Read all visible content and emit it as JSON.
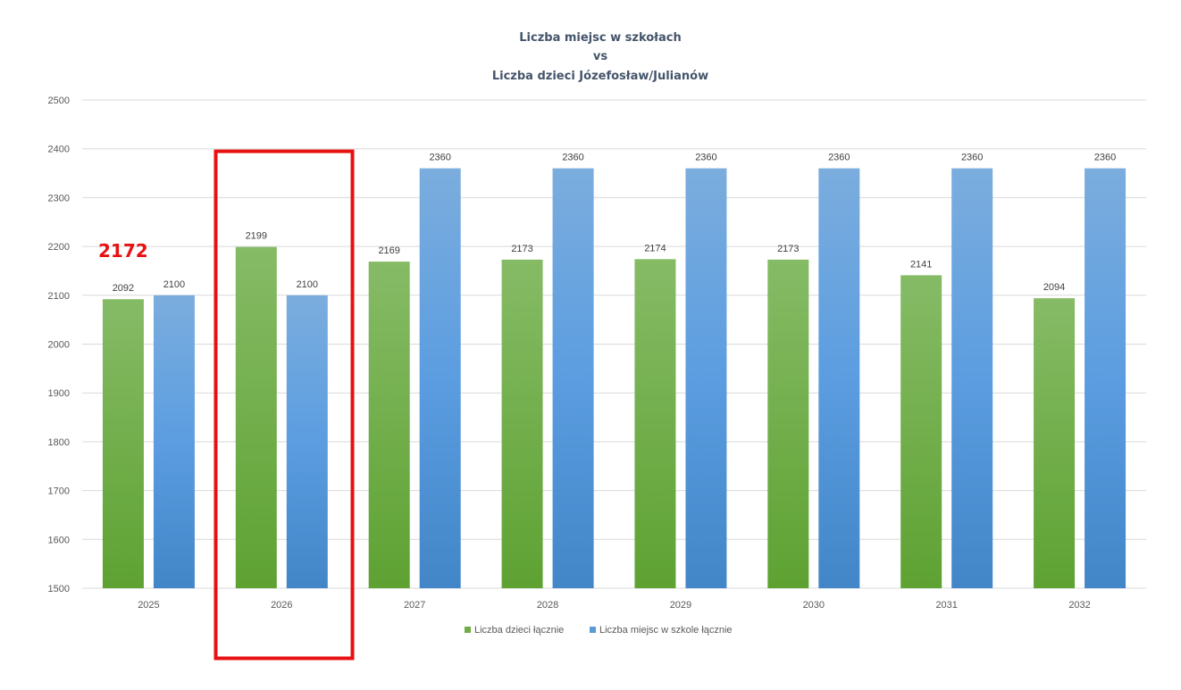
{
  "chart_data": {
    "type": "bar",
    "title": [
      "Liczba miejsc w szkołach",
      "vs",
      "Liczba dzieci Józefosław/Julianów"
    ],
    "categories": [
      "2025",
      "2026",
      "2027",
      "2028",
      "2029",
      "2030",
      "2031",
      "2032"
    ],
    "series": [
      {
        "name": "Liczba dzieci łącznie",
        "color": "#70ad47",
        "values": [
          2092,
          2199,
          2169,
          2173,
          2174,
          2173,
          2141,
          2094
        ]
      },
      {
        "name": "Liczba miejsc w szkole łącznie",
        "color": "#5b9bd5",
        "values": [
          2100,
          2100,
          2360,
          2360,
          2360,
          2360,
          2360,
          2360
        ]
      }
    ],
    "ylim": [
      1500,
      2500
    ],
    "yticks": [
      1500,
      1600,
      1700,
      1800,
      1900,
      2000,
      2100,
      2200,
      2300,
      2400,
      2500
    ],
    "grid": true,
    "legend": "bottom",
    "data_labels": true,
    "annotations": {
      "text": "2172",
      "text_color": "#e81010",
      "highlight_category": "2026",
      "highlight_color": "#e81010"
    }
  }
}
